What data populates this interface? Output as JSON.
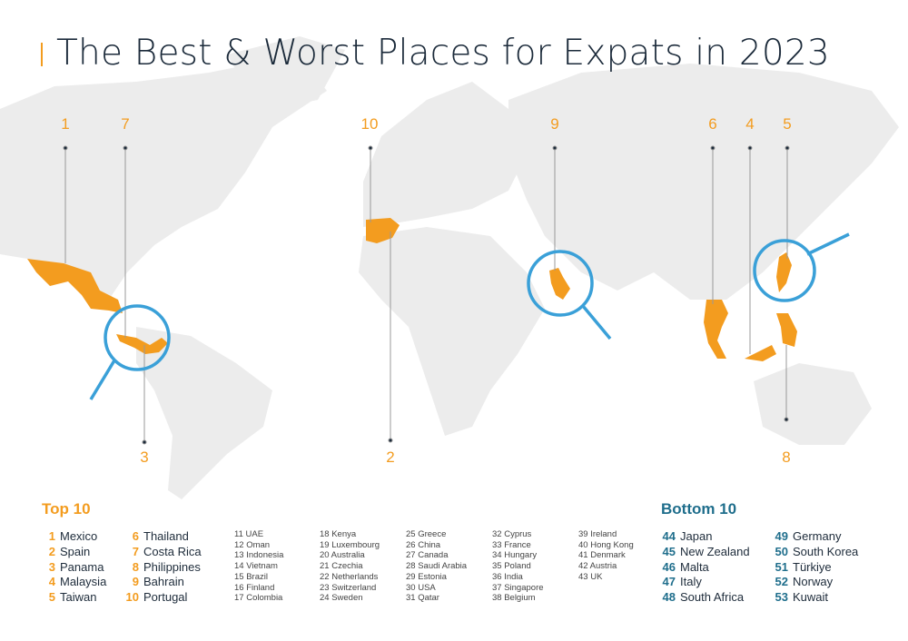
{
  "title": "The Best & Worst Places for Expats in 2023",
  "colors": {
    "highlight": "#f39c1f",
    "magnifier": "#3aa0d8",
    "map": "#ececec",
    "bottom_accent": "#1f6e8c",
    "text": "#1b2a3a"
  },
  "map_callouts": [
    {
      "rank": "1",
      "country": "Mexico"
    },
    {
      "rank": "7",
      "country": "Costa Rica"
    },
    {
      "rank": "3",
      "country": "Panama"
    },
    {
      "rank": "10",
      "country": "Portugal"
    },
    {
      "rank": "2",
      "country": "Spain"
    },
    {
      "rank": "9",
      "country": "Bahrain"
    },
    {
      "rank": "6",
      "country": "Thailand"
    },
    {
      "rank": "4",
      "country": "Malaysia"
    },
    {
      "rank": "5",
      "country": "Taiwan"
    },
    {
      "rank": "8",
      "country": "Philippines"
    }
  ],
  "top10": {
    "heading": "Top 10",
    "items": [
      {
        "rank": "1",
        "name": "Mexico"
      },
      {
        "rank": "2",
        "name": "Spain"
      },
      {
        "rank": "3",
        "name": "Panama"
      },
      {
        "rank": "4",
        "name": "Malaysia"
      },
      {
        "rank": "5",
        "name": "Taiwan"
      },
      {
        "rank": "6",
        "name": "Thailand"
      },
      {
        "rank": "7",
        "name": "Costa Rica"
      },
      {
        "rank": "8",
        "name": "Philippines"
      },
      {
        "rank": "9",
        "name": "Bahrain"
      },
      {
        "rank": "10",
        "name": "Portugal"
      }
    ]
  },
  "middle": [
    "11 UAE",
    "12 Oman",
    "13 Indonesia",
    "14 Vietnam",
    "15 Brazil",
    "16 Finland",
    "17 Colombia",
    "18 Kenya",
    "19 Luxembourg",
    "20 Australia",
    "21 Czechia",
    "22 Netherlands",
    "23 Switzerland",
    "24 Sweden",
    "25 Greece",
    "26 China",
    "27 Canada",
    "28 Saudi Arabia",
    "29 Estonia",
    "30 USA",
    "31 Qatar",
    "32 Cyprus",
    "33 France",
    "34 Hungary",
    "35 Poland",
    "36 India",
    "37 Singapore",
    "38 Belgium",
    "39 Ireland",
    "40 Hong Kong",
    "41 Denmark",
    "42 Austria",
    "43 UK"
  ],
  "bottom10": {
    "heading": "Bottom 10",
    "items": [
      {
        "rank": "44",
        "name": "Japan"
      },
      {
        "rank": "45",
        "name": "New Zealand"
      },
      {
        "rank": "46",
        "name": "Malta"
      },
      {
        "rank": "47",
        "name": "Italy"
      },
      {
        "rank": "48",
        "name": "South Africa"
      },
      {
        "rank": "49",
        "name": "Germany"
      },
      {
        "rank": "50",
        "name": "South Korea"
      },
      {
        "rank": "51",
        "name": "Türkiye"
      },
      {
        "rank": "52",
        "name": "Norway"
      },
      {
        "rank": "53",
        "name": "Kuwait"
      }
    ]
  }
}
